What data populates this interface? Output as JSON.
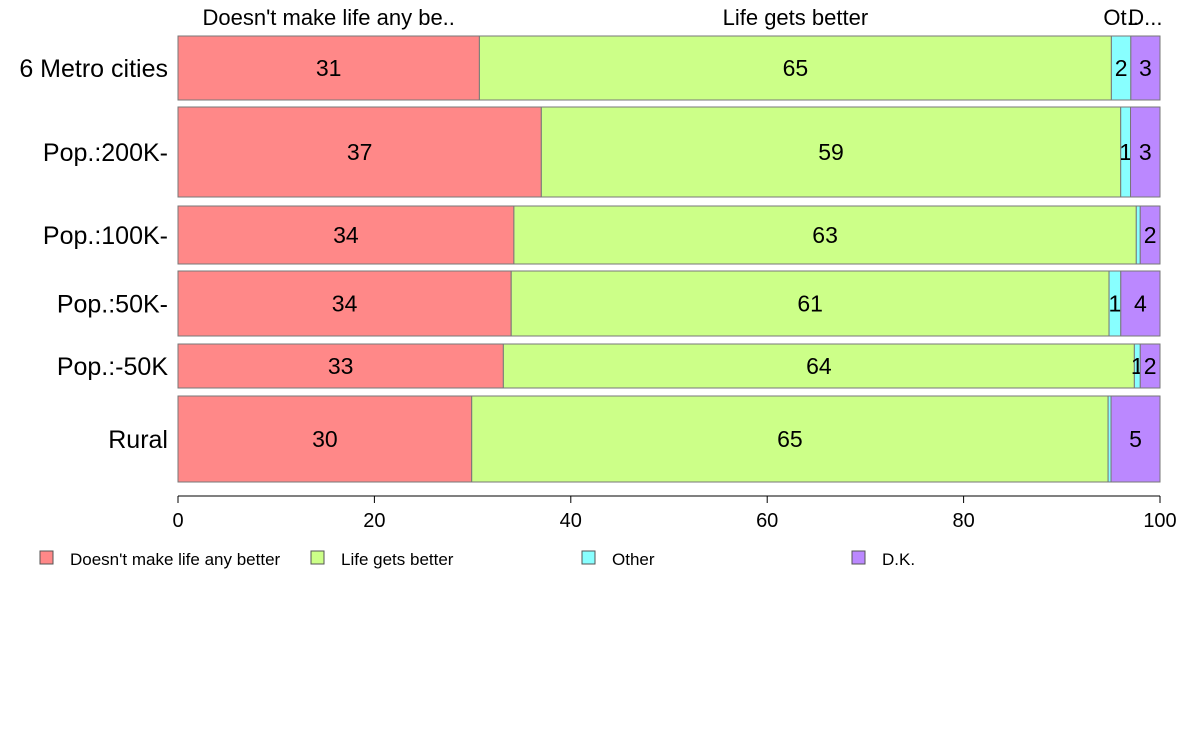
{
  "chart_data": {
    "type": "bar",
    "orientation": "horizontal",
    "stacked": true,
    "categories": [
      "6 Metro cities",
      "Pop.:200K-",
      "Pop.:100K-",
      "Pop.:50K-",
      "Pop.:-50K",
      "Rural"
    ],
    "series": [
      {
        "name": "Doesn't make life any better",
        "values": [
          31,
          37,
          34,
          34,
          33,
          30
        ],
        "color": "#ff8888"
      },
      {
        "name": "Life gets better",
        "values": [
          65,
          59,
          63,
          61,
          64,
          65
        ],
        "color": "#ccff88"
      },
      {
        "name": "Other",
        "values": [
          2,
          1,
          0.4,
          1.2,
          0.6,
          0.3
        ],
        "color": "#88ffff"
      },
      {
        "name": "D.K.",
        "values": [
          3,
          3,
          2,
          4,
          2,
          5
        ],
        "color": "#bb88ff"
      }
    ],
    "data_labels": [
      [
        "31",
        "65",
        "2",
        "3"
      ],
      [
        "37",
        "59",
        "1",
        "3"
      ],
      [
        "34",
        "63",
        "",
        "2"
      ],
      [
        "34",
        "61",
        "1",
        "4"
      ],
      [
        "33",
        "64",
        "1",
        "2"
      ],
      [
        "30",
        "65",
        "",
        "5"
      ]
    ],
    "top_labels": [
      "Doesn't make life any be..",
      "Life gets better",
      "Ot..",
      "D..."
    ],
    "xlim": [
      0,
      100
    ],
    "xticks": [
      0,
      20,
      40,
      60,
      80,
      100
    ],
    "xlabel": "",
    "ylabel": "",
    "title": "",
    "legend_position": "bottom-left",
    "grid": false
  }
}
